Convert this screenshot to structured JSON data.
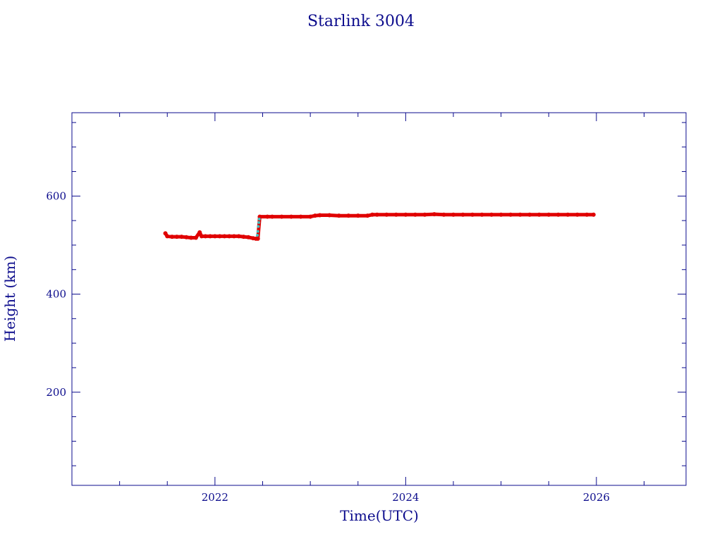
{
  "chart_data": {
    "type": "scatter",
    "title": "Starlink 3004",
    "xlabel": "Time(UTC)",
    "ylabel": "Height (km)",
    "xlim": [
      2020.5,
      2026.94
    ],
    "ylim": [
      10,
      770
    ],
    "x_major_ticks": [
      2022,
      2024,
      2026
    ],
    "x_tick_labels": [
      "2022",
      "2024",
      "2026"
    ],
    "y_major_ticks": [
      200,
      400,
      600
    ],
    "y_tick_labels": [
      "200",
      "400",
      "600"
    ],
    "grid": false,
    "colors": {
      "axis": "#0b0b8c",
      "series": "#e00000",
      "transfer": "#3fbfbf"
    },
    "series": [
      {
        "points": [
          [
            2021.48,
            524
          ],
          [
            2021.5,
            518
          ],
          [
            2021.55,
            517
          ],
          [
            2021.6,
            517
          ],
          [
            2021.65,
            517
          ],
          [
            2021.7,
            516
          ],
          [
            2021.75,
            515
          ],
          [
            2021.8,
            515
          ],
          [
            2021.84,
            526
          ],
          [
            2021.86,
            518
          ],
          [
            2021.9,
            518
          ],
          [
            2021.95,
            518
          ],
          [
            2022.0,
            518
          ],
          [
            2022.05,
            518
          ],
          [
            2022.1,
            518
          ],
          [
            2022.15,
            518
          ],
          [
            2022.2,
            518
          ],
          [
            2022.25,
            518
          ],
          [
            2022.3,
            517
          ],
          [
            2022.35,
            516
          ],
          [
            2022.4,
            514
          ],
          [
            2022.43,
            513
          ],
          [
            2022.45,
            513
          ],
          [
            2022.47,
            558
          ],
          [
            2022.55,
            558
          ],
          [
            2022.6,
            558
          ],
          [
            2022.7,
            558
          ],
          [
            2022.8,
            558
          ],
          [
            2022.9,
            558
          ],
          [
            2023.0,
            558
          ],
          [
            2023.05,
            560
          ],
          [
            2023.1,
            561
          ],
          [
            2023.2,
            561
          ],
          [
            2023.3,
            560
          ],
          [
            2023.4,
            560
          ],
          [
            2023.5,
            560
          ],
          [
            2023.6,
            560
          ],
          [
            2023.65,
            562
          ],
          [
            2023.7,
            562
          ],
          [
            2023.8,
            562
          ],
          [
            2023.9,
            562
          ],
          [
            2024.0,
            562
          ],
          [
            2024.1,
            562
          ],
          [
            2024.2,
            562
          ],
          [
            2024.3,
            563
          ],
          [
            2024.4,
            562
          ],
          [
            2024.5,
            562
          ],
          [
            2024.6,
            562
          ],
          [
            2024.7,
            562
          ],
          [
            2024.8,
            562
          ],
          [
            2024.9,
            562
          ],
          [
            2025.0,
            562
          ],
          [
            2025.1,
            562
          ],
          [
            2025.2,
            562
          ],
          [
            2025.3,
            562
          ],
          [
            2025.4,
            562
          ],
          [
            2025.5,
            562
          ],
          [
            2025.6,
            562
          ],
          [
            2025.7,
            562
          ],
          [
            2025.8,
            562
          ],
          [
            2025.9,
            562
          ],
          [
            2025.97,
            562
          ]
        ]
      },
      {
        "points": [
          [
            2022.445,
            520
          ],
          [
            2022.45,
            528
          ],
          [
            2022.455,
            538
          ],
          [
            2022.46,
            546
          ],
          [
            2022.465,
            553
          ]
        ]
      }
    ]
  }
}
